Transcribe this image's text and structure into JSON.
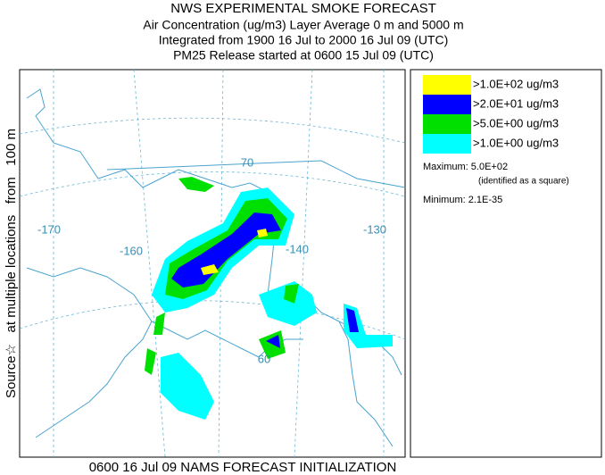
{
  "header": {
    "title": "NWS EXPERIMENTAL SMOKE FORECAST",
    "lines": [
      "Air Concentration (ug/m3) Layer Average    0 m and  5000 m",
      "Integrated from 1900 16 Jul to 2000 16 Jul 09 (UTC)",
      "PM25 Release started at 0600 15 Jul 09 (UTC)"
    ]
  },
  "side_label": "Source☆   at multiple locations   from   100 m",
  "map": {
    "grid_labels": [
      "-170",
      "-160",
      "-140",
      "-130",
      "70",
      "60"
    ]
  },
  "legend": {
    "items": [
      {
        "label": ">1.0E+02 ug/m3",
        "color": "#ffff00"
      },
      {
        "label": ">2.0E+01 ug/m3",
        "color": "#0000ff"
      },
      {
        "label": ">5.0E+00 ug/m3",
        "color": "#00e000"
      },
      {
        "label": ">1.0E+00 ug/m3",
        "color": "#00ffff"
      }
    ],
    "maximum": "Maximum: 5.0E+02",
    "max_note": "(identified as a square)",
    "minimum": "Minimum: 2.1E-35"
  },
  "footer": "0600 16 Jul 09 NAMS FORECAST INITIALIZATION"
}
